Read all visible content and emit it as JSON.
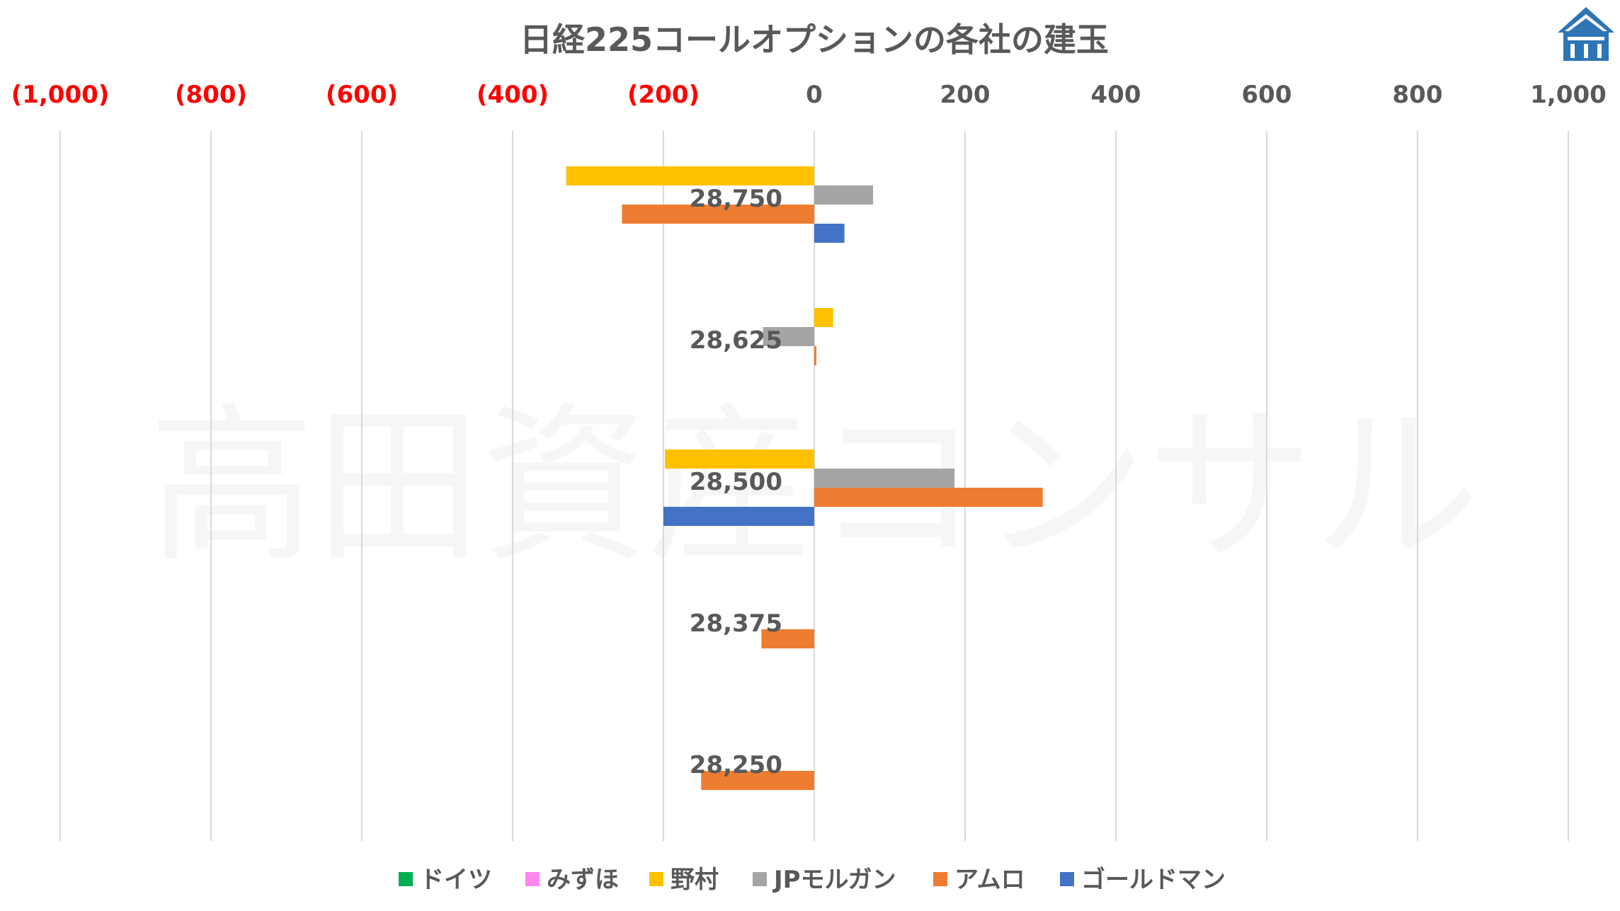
{
  "chart_data": {
    "type": "bar",
    "orientation": "horizontal",
    "title": "日経225コールオプションの各社の建玉",
    "watermark": "高田資産コンサル",
    "xlim": [
      -1000,
      1000
    ],
    "x_ticks": [
      {
        "value": -1000,
        "label": "(1,000)"
      },
      {
        "value": -800,
        "label": "(800)"
      },
      {
        "value": -600,
        "label": "(600)"
      },
      {
        "value": -400,
        "label": "(400)"
      },
      {
        "value": -200,
        "label": "(200)"
      },
      {
        "value": 0,
        "label": "0"
      },
      {
        "value": 200,
        "label": "200"
      },
      {
        "value": 400,
        "label": "400"
      },
      {
        "value": 600,
        "label": "600"
      },
      {
        "value": 800,
        "label": "800"
      },
      {
        "value": 1000,
        "label": "1,000"
      }
    ],
    "negative_tick_color": "#ff0000",
    "positive_tick_color": "#595959",
    "gridlines": true,
    "legend_position": "bottom",
    "categories": [
      "28,750",
      "28,625",
      "28,500",
      "28,375",
      "28,250"
    ],
    "series": [
      {
        "name": "ドイツ",
        "color": "#00b050",
        "values": [
          0,
          0,
          0,
          0,
          0
        ]
      },
      {
        "name": "みずほ",
        "color": "#ff85f0",
        "values": [
          0,
          0,
          0,
          0,
          0
        ]
      },
      {
        "name": "野村",
        "color": "#ffc000",
        "values": [
          -329,
          25,
          -198,
          0,
          0
        ]
      },
      {
        "name": "JPモルガン",
        "color": "#a5a5a5",
        "values": [
          78,
          -68,
          186,
          0,
          0
        ]
      },
      {
        "name": "アムロ",
        "color": "#ed7d31",
        "values": [
          -255,
          2,
          303,
          -70,
          -150
        ]
      },
      {
        "name": "ゴールドマン",
        "color": "#4472c4",
        "values": [
          40,
          0,
          -200,
          0,
          0
        ]
      }
    ],
    "logo_icon": "house-logo-icon"
  }
}
